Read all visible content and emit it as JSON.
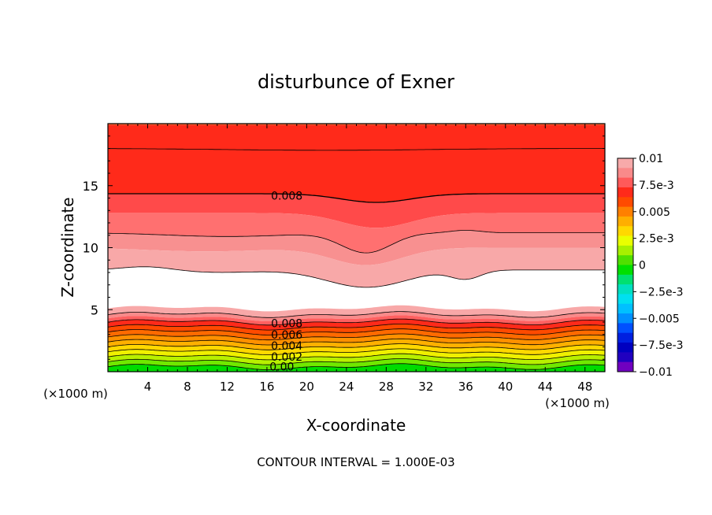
{
  "chart_data": {
    "type": "contour",
    "title": "disturbunce of Exner",
    "xlabel": "X-coordinate",
    "ylabel": "Z-coordinate",
    "x_unit_left": "(×1000 m)",
    "x_unit_right": "(×1000 m)",
    "xlim": [
      0,
      50
    ],
    "ylim": [
      0,
      20
    ],
    "xticks": [
      4,
      8,
      12,
      16,
      20,
      24,
      28,
      32,
      36,
      40,
      44,
      48
    ],
    "yticks": [
      5,
      10,
      15
    ],
    "contour_interval_text": "CONTOUR INTERVAL = 1.000E-03",
    "contour_labels": [
      {
        "text": "0.008",
        "x": 18,
        "z": 14.2
      },
      {
        "text": "0.008",
        "x": 18,
        "z": 3.9
      },
      {
        "text": "0.006",
        "x": 18,
        "z": 3.0
      },
      {
        "text": "0.004",
        "x": 18,
        "z": 2.1
      },
      {
        "text": "0.002",
        "x": 18,
        "z": 1.2
      },
      {
        "text": "0.00",
        "x": 17.5,
        "z": 0.4
      }
    ],
    "colorbar": {
      "min": -0.01,
      "max": 0.01,
      "labels": [
        "0.01",
        "7.5e-3",
        "0.005",
        "2.5e-3",
        "0",
        "−2.5e-3",
        "−0.005",
        "−7.5e-3",
        "−0.01"
      ],
      "colors": [
        "#f7aaaa",
        "#f98a8a",
        "#ff5a5a",
        "#ff2a1a",
        "#ff4a00",
        "#ff8000",
        "#ffae00",
        "#ffd800",
        "#eaff00",
        "#a8f000",
        "#50e000",
        "#00e000",
        "#00e070",
        "#00e0c0",
        "#00e0f0",
        "#00c0ff",
        "#0090ff",
        "#0050ff",
        "#0020e0",
        "#0000c0",
        "#2000c0",
        "#7000c0"
      ]
    },
    "field_layers": [
      {
        "value": 0.0105,
        "color": "#ff5a1e"
      },
      {
        "value": 0.0095,
        "color": "#ff2a1a"
      },
      {
        "value": 0.0085,
        "color": "#ff2a1a"
      },
      {
        "value": 0.0075,
        "color": "#ff4a4a"
      },
      {
        "value": 0.0065,
        "color": "#ff7070"
      },
      {
        "value": 0.0055,
        "color": "#f89090"
      },
      {
        "value": 0.0045,
        "color": "#f8a8a8"
      },
      {
        "value": 0.0,
        "color": "#ffffff"
      }
    ],
    "upper_boundaries": [
      {
        "level": "top",
        "z": 19.9
      },
      {
        "level": "a",
        "z": 18.0
      },
      {
        "level": "b",
        "z": 14.5
      },
      {
        "level": "c",
        "z": 12.8
      },
      {
        "level": "d",
        "z": 11.2
      },
      {
        "level": "e",
        "z": 10.0
      },
      {
        "level": "f",
        "z": 8.2
      }
    ],
    "lower_bands": [
      {
        "z_top": 5.1,
        "color": "#f8a8a8"
      },
      {
        "z_top": 4.6,
        "color": "#f88a8a"
      },
      {
        "z_top": 4.3,
        "color": "#ff6060"
      },
      {
        "z_top": 4.0,
        "color": "#ff2a1a"
      },
      {
        "z_top": 3.6,
        "color": "#ff4a00"
      },
      {
        "z_top": 3.2,
        "color": "#ff6a00"
      },
      {
        "z_top": 2.8,
        "color": "#ff9000"
      },
      {
        "z_top": 2.4,
        "color": "#ffb000"
      },
      {
        "z_top": 2.0,
        "color": "#ffd800"
      },
      {
        "z_top": 1.6,
        "color": "#f0f000"
      },
      {
        "z_top": 1.2,
        "color": "#b8f000"
      },
      {
        "z_top": 0.8,
        "color": "#70e800"
      },
      {
        "z_top": 0.4,
        "color": "#30e000"
      }
    ],
    "bottom_color": "#00dc00"
  }
}
